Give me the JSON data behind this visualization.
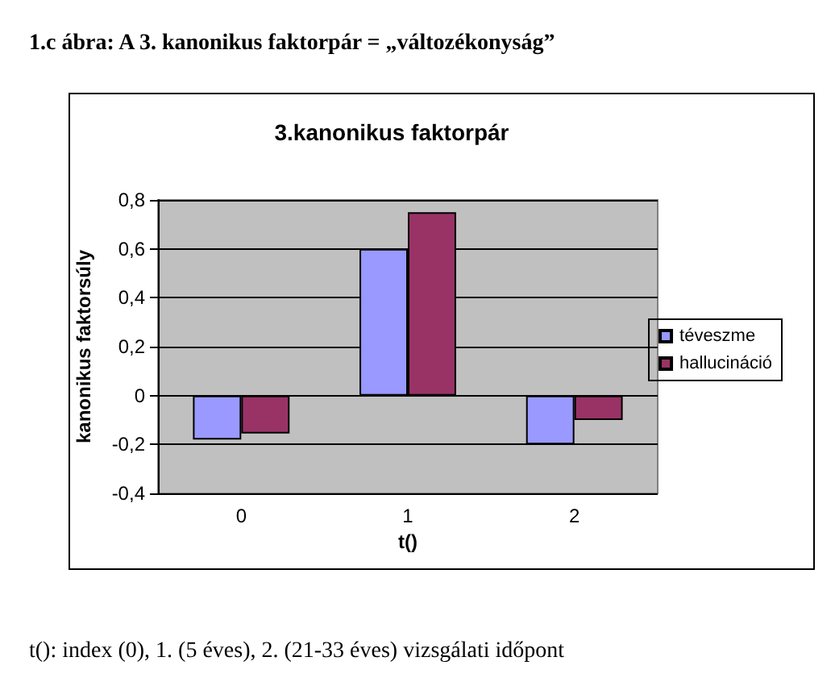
{
  "chart_data": {
    "type": "bar",
    "title": "3.kanonikus faktorpár",
    "xlabel": "t()",
    "ylabel": "kanonikus faktorsúly",
    "annotations": [
      "1.c ábra: A 3. kanonikus faktorpár = „változékonyság”",
      "t(): index (0), 1. (5 éves), 2. (21-33 éves) vizsgálati időpont"
    ],
    "categories": [
      "0",
      "1",
      "2"
    ],
    "series": [
      {
        "name": "téveszme",
        "color": "#9999ff",
        "values": [
          -0.18,
          0.6,
          -0.2
        ]
      },
      {
        "name": "hallucináció",
        "color": "#993366",
        "values": [
          -0.155,
          0.75,
          -0.1
        ]
      }
    ],
    "ylim": [
      -0.4,
      0.8
    ],
    "yticks": [
      {
        "value": -0.4,
        "label": "-0,4"
      },
      {
        "value": -0.2,
        "label": "-0,2"
      },
      {
        "value": 0,
        "label": "0"
      },
      {
        "value": 0.2,
        "label": "0,2"
      },
      {
        "value": 0.4,
        "label": "0,4"
      },
      {
        "value": 0.6,
        "label": "0,6"
      },
      {
        "value": 0.8,
        "label": "0,8"
      }
    ],
    "grid": "y",
    "legend": "right"
  }
}
